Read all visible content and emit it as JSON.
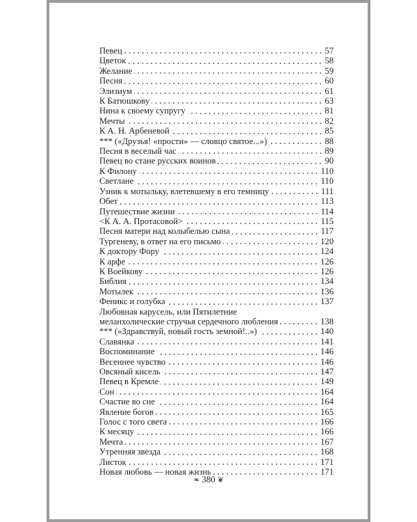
{
  "toc": {
    "entries": [
      {
        "title": "Певец",
        "page": "57"
      },
      {
        "title": "Цветок",
        "page": "58"
      },
      {
        "title": "Желание",
        "page": "59"
      },
      {
        "title": "Песня",
        "page": "60"
      },
      {
        "title": "Элизиум",
        "page": "61"
      },
      {
        "title": "К Батюшкову",
        "page": "63"
      },
      {
        "title": "Нина к своему супругу",
        "page": "81"
      },
      {
        "title": "Мечты",
        "page": "82"
      },
      {
        "title": "К А. Н. Арбеневой",
        "page": "85"
      },
      {
        "title": "*** («Друзья! «прости» — словцо святое...»)",
        "page": "88"
      },
      {
        "title": "Песня в веселый час",
        "page": "89"
      },
      {
        "title": "Певец во стане русских воинов",
        "page": "90"
      },
      {
        "title": "К Филону",
        "page": "110"
      },
      {
        "title": "Светлане",
        "page": "110"
      },
      {
        "title": "Узник к мотыльку, влетевшему в его темницу",
        "page": "111"
      },
      {
        "title": "Обет",
        "page": "113"
      },
      {
        "title": "Путешествие жизни",
        "page": "114"
      },
      {
        "title": "<К А. А. Протасовой>",
        "page": "115"
      },
      {
        "title": "Песня матери над колыбелью сына",
        "page": "117"
      },
      {
        "title": "Тургеневу, в ответ на его письмо",
        "page": "120"
      },
      {
        "title": "К доктору Фору",
        "page": "124"
      },
      {
        "title": "К арфе",
        "page": "126"
      },
      {
        "title": "К Воейкову",
        "page": "126"
      },
      {
        "title": "Библия",
        "page": "134"
      },
      {
        "title": "Мотылек",
        "page": "136"
      },
      {
        "title": "Феникс и голубка",
        "page": "137"
      },
      {
        "title_line1": "Любовная карусель, или Пятилетние",
        "title": "меланхолические стручья сердечного любления",
        "page": "138"
      },
      {
        "title": "*** («Здравствуй, новый гость земной!..»)",
        "page": "140"
      },
      {
        "title": "Славянка",
        "page": "141"
      },
      {
        "title": "Воспоминание",
        "page": "146"
      },
      {
        "title": "Весеннее чувство",
        "page": "146"
      },
      {
        "title": "Овсяный кисель",
        "page": "147"
      },
      {
        "title": "Певец в Кремле",
        "page": "149"
      },
      {
        "title": "Сон",
        "page": "164"
      },
      {
        "title": "Счастие во сне",
        "page": "164"
      },
      {
        "title": "Явление богов",
        "page": "165"
      },
      {
        "title": "Голос с того света",
        "page": "166"
      },
      {
        "title": "К месяцу",
        "page": "166"
      },
      {
        "title": "Мечта",
        "page": "167"
      },
      {
        "title": "Утренняя звезда",
        "page": "168"
      },
      {
        "title": "Листок",
        "page": "171"
      },
      {
        "title": "Новая любовь — новая жизнь",
        "page": "171"
      }
    ]
  },
  "folio": {
    "page_number": "380"
  }
}
